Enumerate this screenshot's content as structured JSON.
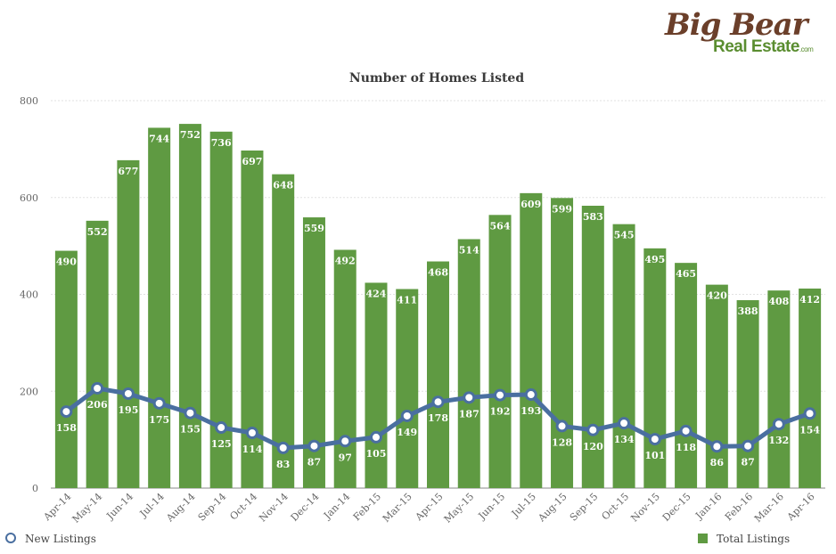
{
  "logo": {
    "line1": "Big Bear",
    "line2": "Real Estate",
    "suffix": ".com"
  },
  "colors": {
    "bar": "#5f9a42",
    "line": "#4a6fa0",
    "grid": "#e2e2e2",
    "axis": "#666666"
  },
  "chart_data": {
    "type": "bar",
    "title": "Number of Homes Listed",
    "xlabel": "",
    "ylabel": "",
    "ylim": [
      0,
      800
    ],
    "yticks": [
      0,
      200,
      400,
      600,
      800
    ],
    "grid": true,
    "legend_position": "bottom",
    "categories": [
      "Apr-14",
      "May-14",
      "Jun-14",
      "Jul-14",
      "Aug-14",
      "Sep-14",
      "Oct-14",
      "Nov-14",
      "Dec-14",
      "Jan-14",
      "Feb-15",
      "Mar-15",
      "Apr-15",
      "May-15",
      "Jun-15",
      "Jul-15",
      "Aug-15",
      "Sep-15",
      "Oct-15",
      "Nov-15",
      "Dec-15",
      "Jan-16",
      "Feb-16",
      "Mar-16",
      "Apr-16"
    ],
    "series": [
      {
        "name": "Total Listings",
        "type": "bar",
        "values": [
          490,
          552,
          677,
          744,
          752,
          736,
          697,
          648,
          559,
          492,
          424,
          411,
          468,
          514,
          564,
          609,
          599,
          583,
          545,
          495,
          465,
          420,
          388,
          408,
          412
        ]
      },
      {
        "name": "New Listings",
        "type": "line",
        "values": [
          158,
          206,
          195,
          175,
          155,
          125,
          114,
          83,
          87,
          97,
          105,
          149,
          178,
          187,
          192,
          193,
          128,
          120,
          134,
          101,
          118,
          86,
          87,
          132,
          154
        ]
      }
    ]
  }
}
